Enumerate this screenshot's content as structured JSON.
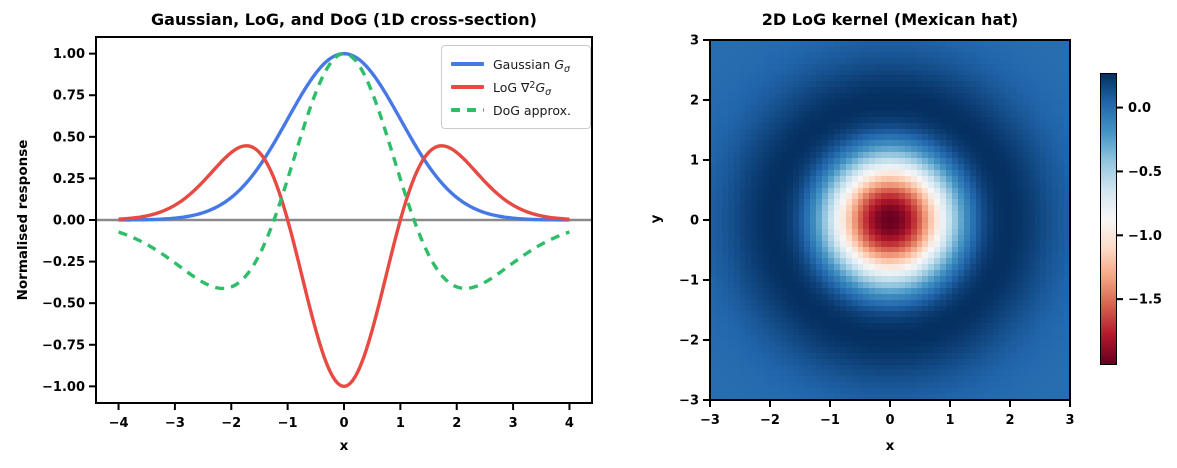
{
  "chart_data": [
    {
      "type": "line",
      "title": "Gaussian, LoG, and DoG (1D cross-section)",
      "xlabel": "x",
      "ylabel": "Normalised response",
      "xlim": [
        -4.4,
        4.4
      ],
      "ylim": [
        -1.1,
        1.1
      ],
      "grid": false,
      "xticks": [
        {
          "v": -4,
          "label": "−4"
        },
        {
          "v": -3,
          "label": "−3"
        },
        {
          "v": -2,
          "label": "−2"
        },
        {
          "v": -1,
          "label": "−1"
        },
        {
          "v": 0,
          "label": "0"
        },
        {
          "v": 1,
          "label": "1"
        },
        {
          "v": 2,
          "label": "2"
        },
        {
          "v": 3,
          "label": "3"
        },
        {
          "v": 4,
          "label": "4"
        }
      ],
      "yticks": [
        {
          "v": 1.0,
          "label": "1.00"
        },
        {
          "v": 0.75,
          "label": "0.75"
        },
        {
          "v": 0.5,
          "label": "0.50"
        },
        {
          "v": 0.25,
          "label": "0.25"
        },
        {
          "v": 0.0,
          "label": "0.00"
        },
        {
          "v": -0.25,
          "label": "−0.25"
        },
        {
          "v": -0.5,
          "label": "−0.50"
        },
        {
          "v": -0.75,
          "label": "−0.75"
        },
        {
          "v": -1.0,
          "label": "−1.00"
        }
      ],
      "axhline": {
        "y": 0,
        "color": "#8a8a8a",
        "width": 2.5
      },
      "legend_position": "upper right",
      "legend": [
        {
          "prefix": "Gaussian ",
          "var": "G",
          "sub": "σ"
        },
        {
          "prefix": "LoG ∇",
          "sup": "2",
          "var": "G",
          "sub": "σ"
        },
        {
          "prefix": "DoG approx."
        }
      ],
      "series": [
        {
          "name": "Gaussian G_sigma",
          "color": "#4678E6",
          "style": "solid",
          "width": 3.4,
          "formula": {
            "name": "gaussian",
            "sigma": 1
          },
          "points": {
            "x": [
              -4,
              -3.5,
              -3,
              -2.5,
              -2,
              -1.5,
              -1,
              -0.5,
              0,
              0.5,
              1,
              1.5,
              2,
              2.5,
              3,
              3.5,
              4
            ],
            "y": [
              0.0003,
              0.0022,
              0.0111,
              0.0439,
              0.1353,
              0.3247,
              0.6065,
              0.8825,
              1.0,
              0.8825,
              0.6065,
              0.3247,
              0.1353,
              0.0439,
              0.0111,
              0.0022,
              0.0003
            ]
          }
        },
        {
          "name": "LoG nabla2 G_sigma",
          "color": "#E64A42",
          "style": "solid",
          "width": 3.4,
          "formula": {
            "name": "log1d",
            "sigma": 1
          },
          "points": {
            "x": [
              -4,
              -3.5,
              -3,
              -2.5,
              -2,
              -1.5,
              -1,
              -0.5,
              0,
              0.5,
              1,
              1.5,
              2,
              2.5,
              3,
              3.5,
              4
            ],
            "y": [
              0.005,
              0.0246,
              0.0888,
              0.2305,
              0.406,
              0.4059,
              0.0,
              -0.6619,
              -1.0,
              -0.6619,
              0.0,
              0.4059,
              0.406,
              0.2305,
              0.0888,
              0.0246,
              0.005
            ]
          }
        },
        {
          "name": "DoG approx.",
          "color": "#2EBE69",
          "style": "dashed",
          "dash": [
            9,
            7
          ],
          "width": 3.4,
          "formula": {
            "name": "dog",
            "sigma1": 1,
            "sigma2": 1.6,
            "scale": 2.6667
          },
          "points": {
            "x": [
              -4,
              -3.5,
              -3,
              -2.5,
              -2,
              -1.5,
              -1,
              -0.5,
              0,
              0.5,
              1,
              1.5,
              2,
              2.5,
              3,
              3.5,
              4
            ],
            "y": [
              -0.0723,
              -0.1465,
              -0.258,
              -0.375,
              -0.403,
              -0.208,
              0.2464,
              0.766,
              1.0,
              0.766,
              0.2464,
              -0.208,
              -0.403,
              -0.375,
              -0.258,
              -0.1465,
              -0.0723
            ]
          }
        }
      ]
    },
    {
      "type": "heatmap",
      "title": "2D LoG kernel (Mexican hat)",
      "xlabel": "x",
      "ylabel": "y",
      "xlim": [
        -3,
        3
      ],
      "ylim": [
        -3,
        3
      ],
      "grid_n": 61,
      "formula": {
        "name": "log2d",
        "sigma": 1
      },
      "vmin": -2.0,
      "vmax": 0.2707,
      "xticks": [
        {
          "v": -3,
          "label": "−3"
        },
        {
          "v": -2,
          "label": "−2"
        },
        {
          "v": -1,
          "label": "−1"
        },
        {
          "v": 0,
          "label": "0"
        },
        {
          "v": 1,
          "label": "1"
        },
        {
          "v": 2,
          "label": "2"
        },
        {
          "v": 3,
          "label": "3"
        }
      ],
      "yticks": [
        {
          "v": 3,
          "label": "3"
        },
        {
          "v": 2,
          "label": "2"
        },
        {
          "v": 1,
          "label": "1"
        },
        {
          "v": 0,
          "label": "0"
        },
        {
          "v": -1,
          "label": "−1"
        },
        {
          "v": -2,
          "label": "−2"
        },
        {
          "v": -3,
          "label": "−3"
        }
      ],
      "colormap": {
        "name": "RdBu",
        "stops": [
          "#67001f",
          "#b2182b",
          "#d6604d",
          "#f4a582",
          "#fddbc7",
          "#f7f7f7",
          "#d1e5f0",
          "#92c5de",
          "#4393c3",
          "#2166ac",
          "#053061"
        ]
      },
      "colorbar": {
        "ticks": [
          {
            "v": 0.0,
            "label": "0.0"
          },
          {
            "v": -0.5,
            "label": "−0.5"
          },
          {
            "v": -1.0,
            "label": "−1.0"
          },
          {
            "v": -1.5,
            "label": "−1.5"
          }
        ]
      }
    }
  ],
  "style_colors": {
    "spine": "#000000",
    "tick": "#000000",
    "text": "#000000",
    "legend_border": "#cccccc",
    "background": "#ffffff"
  }
}
